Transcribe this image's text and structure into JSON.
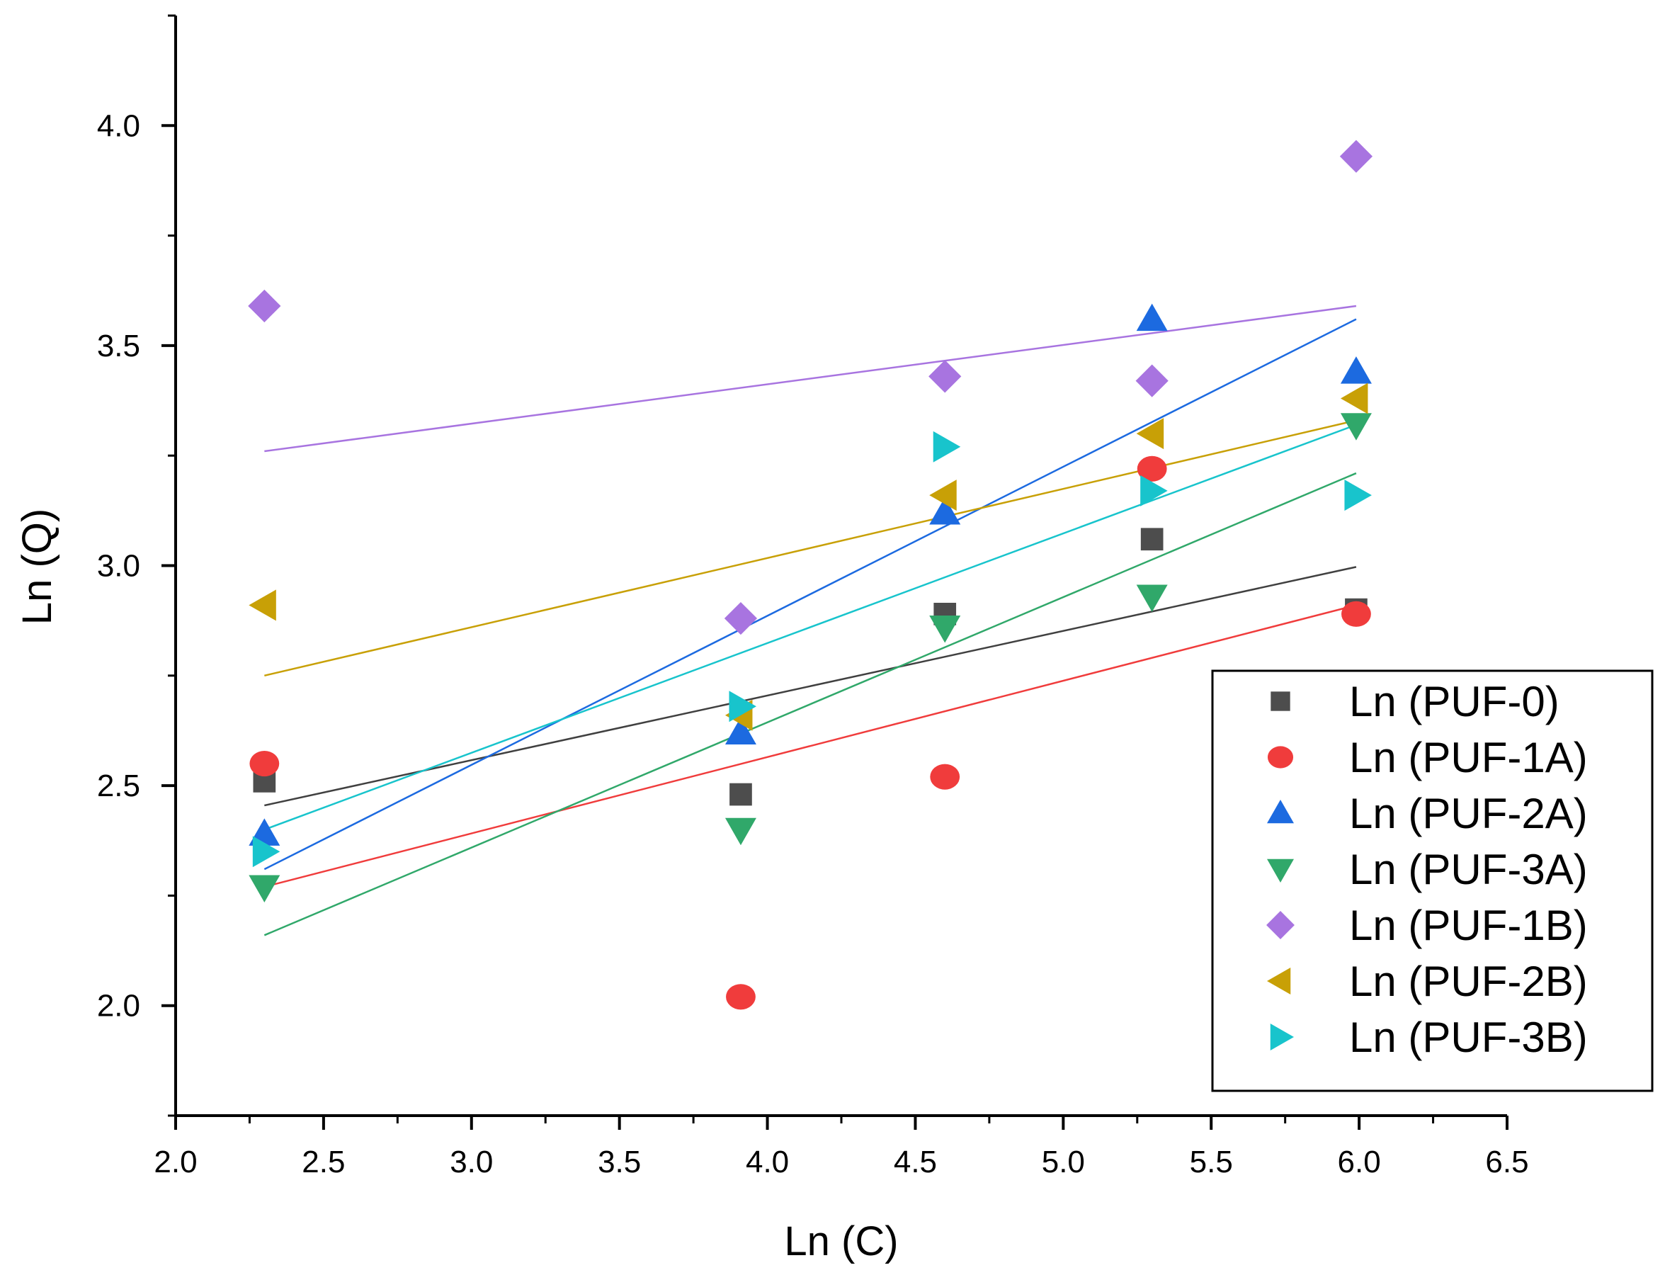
{
  "chart_data": {
    "type": "scatter",
    "title": "",
    "xlabel": "Ln (C)",
    "ylabel": "Ln (Q)",
    "xlim": [
      2.0,
      6.5
    ],
    "ylim": [
      1.75,
      4.25
    ],
    "x_ticks": [
      2.0,
      2.5,
      3.0,
      3.5,
      4.0,
      4.5,
      5.0,
      5.5,
      6.0,
      6.5
    ],
    "y_ticks": [
      2.0,
      2.5,
      3.0,
      3.5,
      4.0
    ],
    "x_tick_labels": [
      "2.0",
      "2.5",
      "3.0",
      "3.5",
      "4.0",
      "4.5",
      "5.0",
      "5.5",
      "6.0",
      "6.5"
    ],
    "y_tick_labels": [
      "2.0",
      "2.5",
      "3.0",
      "3.5",
      "4.0"
    ],
    "grid": false,
    "legend_position": "bottom-right",
    "x": [
      2.3,
      3.91,
      4.6,
      5.3,
      5.99
    ],
    "series": [
      {
        "name": "Ln (PUF-0)",
        "marker": "square",
        "color": "#4d4d4d",
        "line_color": "#404040",
        "values": [
          2.51,
          2.48,
          2.89,
          3.06,
          2.9
        ],
        "fit": [
          2.455,
          2.997
        ]
      },
      {
        "name": "Ln (PUF-1A)",
        "marker": "circle",
        "color": "#f03c3c",
        "line_color": "#f03c3c",
        "values": [
          2.55,
          2.02,
          2.52,
          3.22,
          2.89
        ],
        "fit": [
          2.27,
          2.91
        ]
      },
      {
        "name": "Ln (PUF-2A)",
        "marker": "triangle-up",
        "color": "#1c6ae0",
        "line_color": "#1c6ae0",
        "values": [
          2.39,
          2.62,
          3.12,
          3.56,
          3.44
        ],
        "fit": [
          2.31,
          3.56
        ]
      },
      {
        "name": "Ln (PUF-3A)",
        "marker": "triangle-down",
        "color": "#30a86a",
        "line_color": "#30a86a",
        "values": [
          2.27,
          2.4,
          2.86,
          2.93,
          3.32
        ],
        "fit": [
          2.16,
          3.21
        ]
      },
      {
        "name": "Ln (PUF-1B)",
        "marker": "diamond",
        "color": "#a874e0",
        "line_color": "#a874e0",
        "values": [
          3.59,
          2.88,
          3.43,
          3.42,
          3.93
        ],
        "fit": [
          3.26,
          3.59
        ]
      },
      {
        "name": "Ln (PUF-2B)",
        "marker": "triangle-left",
        "color": "#c8a006",
        "line_color": "#c8a006",
        "values": [
          2.91,
          2.66,
          3.16,
          3.3,
          3.38
        ],
        "fit": [
          2.75,
          3.33
        ]
      },
      {
        "name": "Ln (PUF-3B)",
        "marker": "triangle-right",
        "color": "#18c4cc",
        "line_color": "#18c4cc",
        "values": [
          2.35,
          2.68,
          3.27,
          3.17,
          3.16
        ],
        "fit": [
          2.4,
          3.32
        ]
      }
    ],
    "fit_x_range": [
      2.3,
      5.99
    ]
  }
}
